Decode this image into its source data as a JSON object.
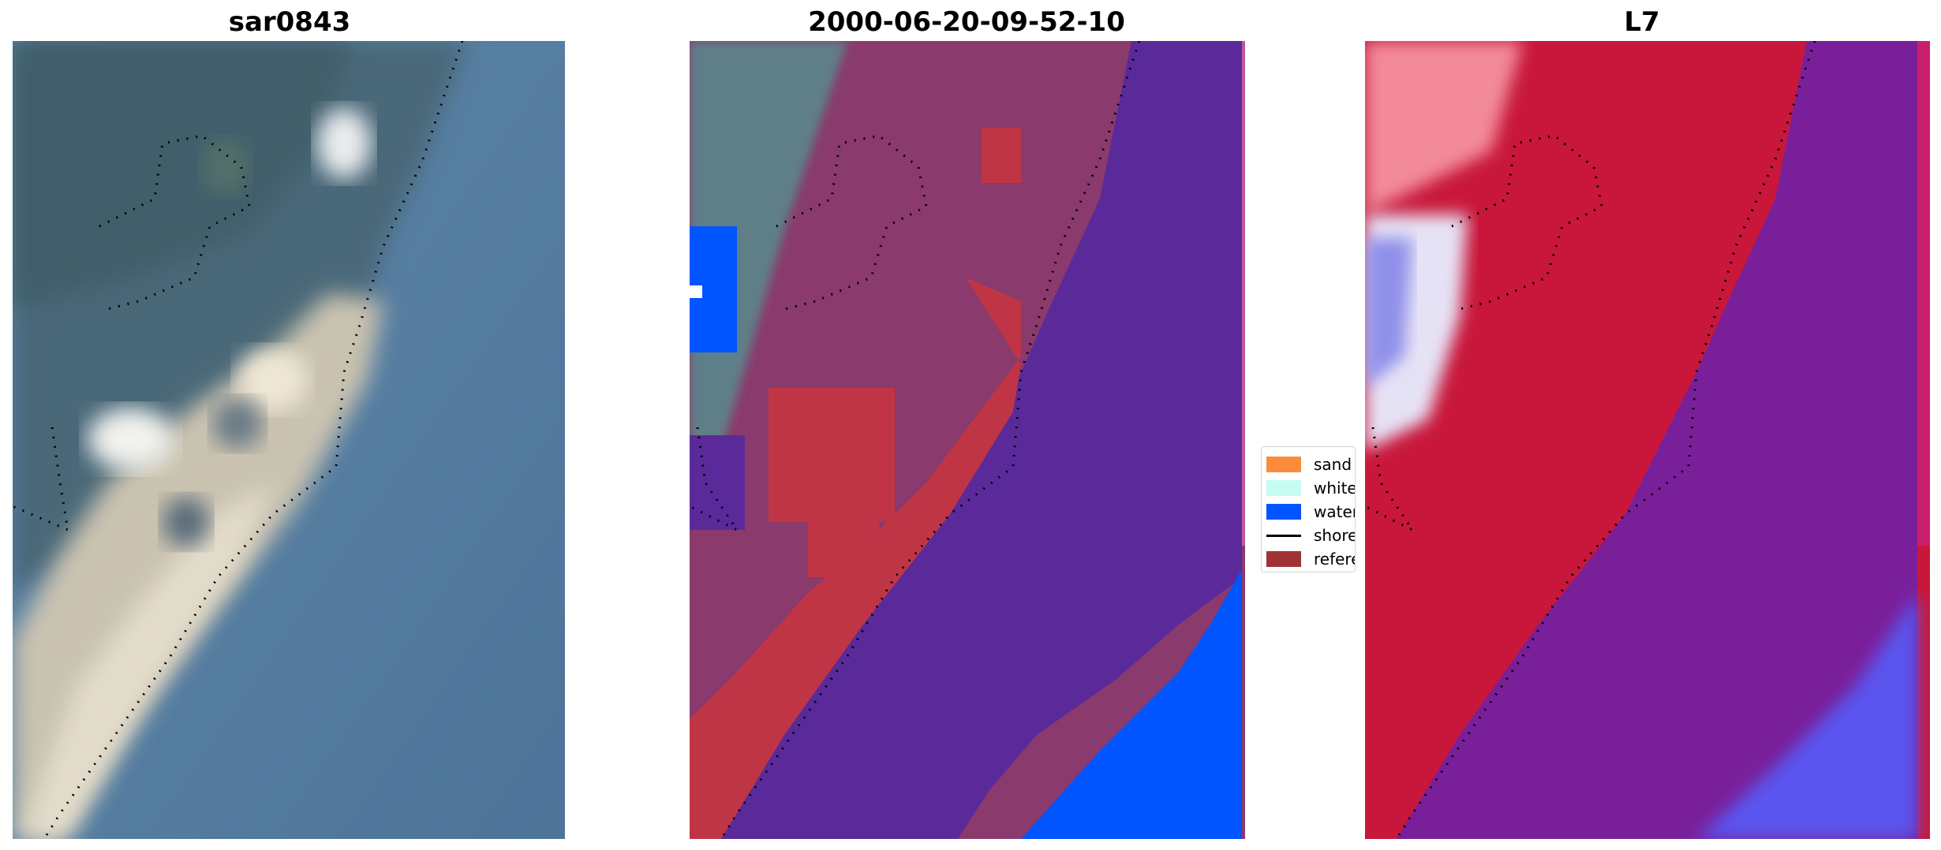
{
  "panels": [
    {
      "title": "sar0843",
      "image": "rgb-satellite-composite"
    },
    {
      "title": "2000-06-20-09-52-10",
      "image": "classified-overlay"
    },
    {
      "title": "L7",
      "image": "water-index-map"
    }
  ],
  "legend": {
    "items": [
      {
        "label": "sand",
        "color": "#fb8c3c",
        "kind": "patch"
      },
      {
        "label": "whitewater",
        "color": "#c6fbf4",
        "kind": "patch"
      },
      {
        "label": "water",
        "color": "#0055ff",
        "kind": "patch"
      },
      {
        "label": "shoreline",
        "color": "#000000",
        "kind": "line"
      },
      {
        "label": "reference",
        "color": "#a03235",
        "kind": "patch"
      }
    ]
  },
  "colors": {
    "water_class": "#0055ff",
    "sand_red": "#c03545",
    "purple_sea": "#5a2a9a",
    "land_magenta": "#8a2a62",
    "index_red": "#c8173a",
    "index_purple": "#6a1f9a",
    "index_blue": "#5a55ee"
  }
}
